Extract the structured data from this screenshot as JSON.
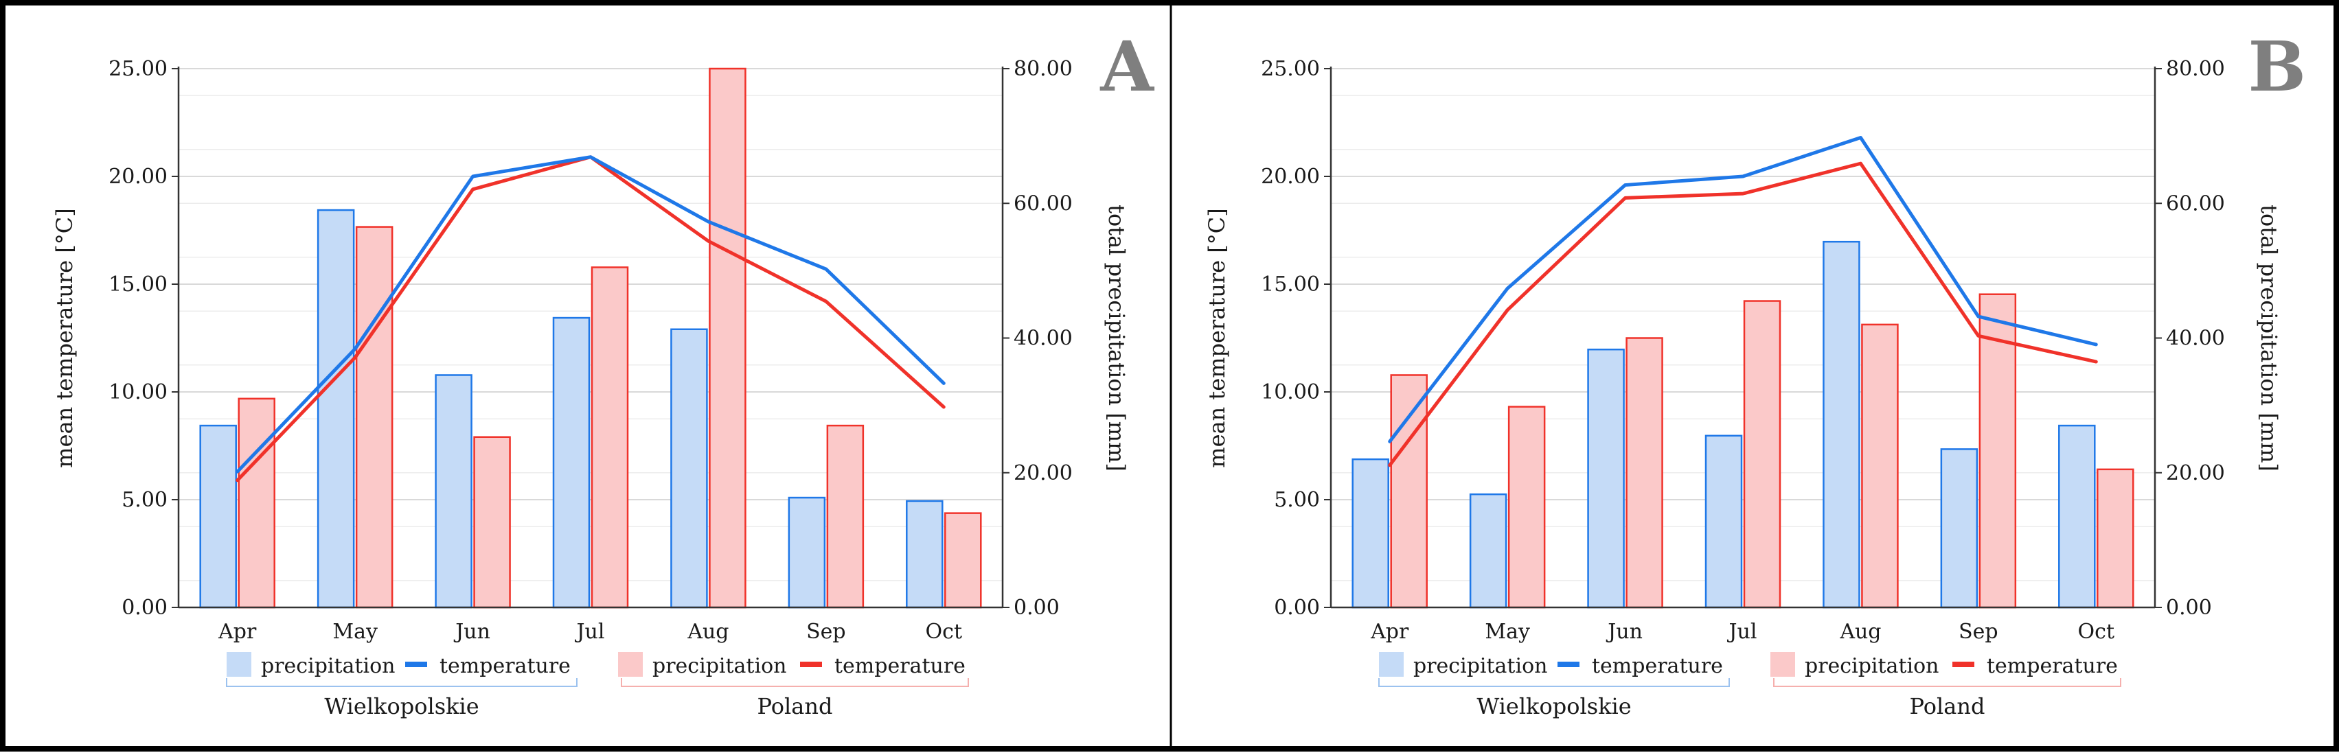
{
  "chart_data": [
    {
      "type": "bar+line",
      "panel_label": "A",
      "categories": [
        "Apr",
        "May",
        "Jun",
        "Jul",
        "Aug",
        "Sep",
        "Oct"
      ],
      "ylabel": "mean temperature [°C]",
      "y2label": "total precipitation [mm]",
      "ylim": [
        0,
        25
      ],
      "y2lim": [
        0,
        80
      ],
      "yticks": [
        "0.00",
        "5.00",
        "10.00",
        "15.00",
        "20.00",
        "25.00"
      ],
      "y2ticks": [
        "0.00",
        "20.00",
        "40.00",
        "60.00",
        "80.00"
      ],
      "bar_series": [
        {
          "name": "precipitation",
          "group": "Wielkopolskie",
          "axis": "right",
          "values": [
            27.0,
            59.0,
            34.5,
            43.0,
            41.3,
            16.3,
            15.8
          ]
        },
        {
          "name": "precipitation",
          "group": "Poland",
          "axis": "right",
          "values": [
            31.0,
            56.5,
            25.3,
            50.5,
            80.0,
            27.0,
            14.0
          ]
        }
      ],
      "line_series": [
        {
          "name": "temperature",
          "group": "Wielkopolskie",
          "axis": "left",
          "values": [
            6.3,
            12.0,
            20.0,
            20.9,
            17.9,
            15.7,
            10.4
          ]
        },
        {
          "name": "temperature",
          "group": "Poland",
          "axis": "left",
          "values": [
            5.9,
            11.6,
            19.4,
            20.9,
            17.0,
            14.2,
            9.3
          ]
        }
      ],
      "legend_groups": [
        "Wielkopolskie",
        "Poland"
      ]
    },
    {
      "type": "bar+line",
      "panel_label": "B",
      "categories": [
        "Apr",
        "May",
        "Jun",
        "Jul",
        "Aug",
        "Sep",
        "Oct"
      ],
      "ylabel": "mean temperature [°C]",
      "y2label": "total precipitation [mm]",
      "ylim": [
        0,
        25
      ],
      "y2lim": [
        0,
        80
      ],
      "yticks": [
        "0.00",
        "5.00",
        "10.00",
        "15.00",
        "20.00",
        "25.00"
      ],
      "y2ticks": [
        "0.00",
        "20.00",
        "40.00",
        "60.00",
        "80.00"
      ],
      "bar_series": [
        {
          "name": "precipitation",
          "group": "Wielkopolskie",
          "axis": "right",
          "values": [
            22.0,
            16.8,
            38.3,
            25.5,
            54.3,
            23.5,
            27.0
          ]
        },
        {
          "name": "precipitation",
          "group": "Poland",
          "axis": "right",
          "values": [
            34.5,
            29.8,
            40.0,
            45.5,
            42.0,
            46.5,
            20.5
          ]
        }
      ],
      "line_series": [
        {
          "name": "temperature",
          "group": "Wielkopolskie",
          "axis": "left",
          "values": [
            7.7,
            14.8,
            19.6,
            20.0,
            21.8,
            13.5,
            12.2
          ]
        },
        {
          "name": "temperature",
          "group": "Poland",
          "axis": "left",
          "values": [
            6.6,
            13.8,
            19.0,
            19.2,
            20.6,
            12.6,
            11.4
          ]
        }
      ],
      "legend_groups": [
        "Wielkopolskie",
        "Poland"
      ]
    }
  ],
  "colors": {
    "blue_line": "#1f78e8",
    "blue_fill": "#c5dbf7",
    "red_line": "#f0322a",
    "red_fill": "#fbc9c9",
    "grid": "#d9d9d9",
    "axis": "#333333",
    "panel_letter": "#7f7f7f"
  }
}
